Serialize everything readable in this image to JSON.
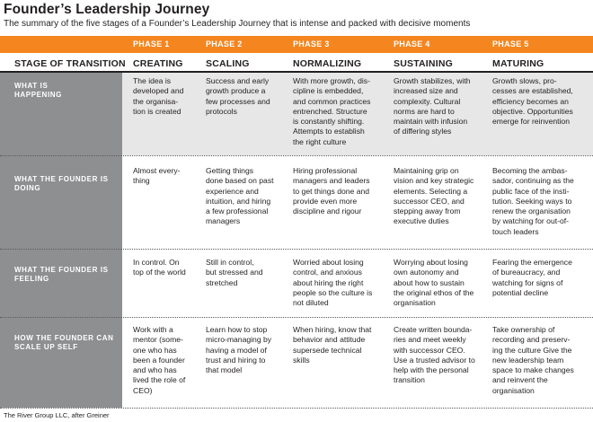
{
  "title": "Founder’s Leadership Journey",
  "subtitle": "The summary of the five stages of a Founder’s Leadership Journey that is intense and packed with decisive moments",
  "phases": [
    "PHASE 1",
    "PHASE 2",
    "PHASE 3",
    "PHASE 4",
    "PHASE 5"
  ],
  "stage_row_label": "STAGE OF TRANSITION",
  "stages": [
    "CREATING",
    "SCALING",
    "NORMALIZING",
    "SUSTAINING",
    "MATURING"
  ],
  "rows": [
    {
      "label": "WHAT IS\nHAPPENING",
      "cells": [
        "The idea is\ndeveloped and\nthe organisa-\ntion is created",
        "Success and early\ngrowth produce a\nfew processes and\nprotocols",
        "With more growth, dis-\ncipline is embedded,\nand common practices\nentrenched. Structure\nis constantly shifting.\nAttempts to establish\nthe right culture",
        "Growth stabilizes, with\nincreased size and\ncomplexity. Cultural\nnorms are hard to\nmaintain with infusion\nof differing styles",
        "Growth slows, pro-\ncesses are established,\nefficiency becomes an\nobjective. Opportunities\nemerge for reinvention"
      ]
    },
    {
      "label": "WHAT THE FOUNDER IS\nDOING",
      "cells": [
        "Almost every-\nthing",
        "Getting things\ndone based on past\nexperience and\nintuition, and hiring\na few professional\nmanagers",
        "Hiring professional\nmanagers and leaders\nto get things done and\nprovide even more\ndiscipline and rigour",
        "Maintaining grip on\nvision and key strategic\nelements. Selecting a\nsuccessor CEO, and\nstepping away from\nexecutive duties",
        "Becoming the ambas-\nsador, continuing as the\npublic face of the insti-\ntution. Seeking ways to\nrenew the organisation\nby watching for out-of-\ntouch leaders"
      ]
    },
    {
      "label": "WHAT THE FOUNDER IS\nFEELING",
      "cells": [
        "In control. On\ntop of the world",
        "Still in control,\nbut stressed and\nstretched",
        "Worried about losing\ncontrol, and anxious\nabout hiring the right\npeople so the culture is\nnot diluted",
        "Worrying about losing\nown autonomy and\nabout how to sustain\nthe original ethos of the\norganisation",
        "Fearing the emergence\nof bureaucracy, and\nwatching for signs of\npotential decline"
      ]
    },
    {
      "label": "HOW THE FOUNDER CAN\nSCALE UP SELF",
      "cells": [
        "Work with a\nmentor (some-\none who has\nbeen a founder\nand who has\nlived the role of\nCEO)",
        "Learn how to stop\nmicro-managing by\nhaving a model of\ntrust and hiring to\nthat model",
        "When hiring, know that\nbehavior and attitude\nsupersede technical\nskills",
        "Create written bounda-\nries and meet weekly\nwith successor CEO.\nUse a trusted advisor to\nhelp with the personal\ntransition",
        "Take ownership of\nrecording and preserv-\ning the culture Give the\nnew leadership team\nspace to make changes\nand reinvent the\norganisation"
      ]
    }
  ],
  "footer": "The River Group LLC, after Greiner",
  "colors": {
    "accent_orange": "#f5851f",
    "label_column_gray": "#8e8f91",
    "row_band_gray": "#e7e7e8",
    "text_dark": "#231f20"
  }
}
